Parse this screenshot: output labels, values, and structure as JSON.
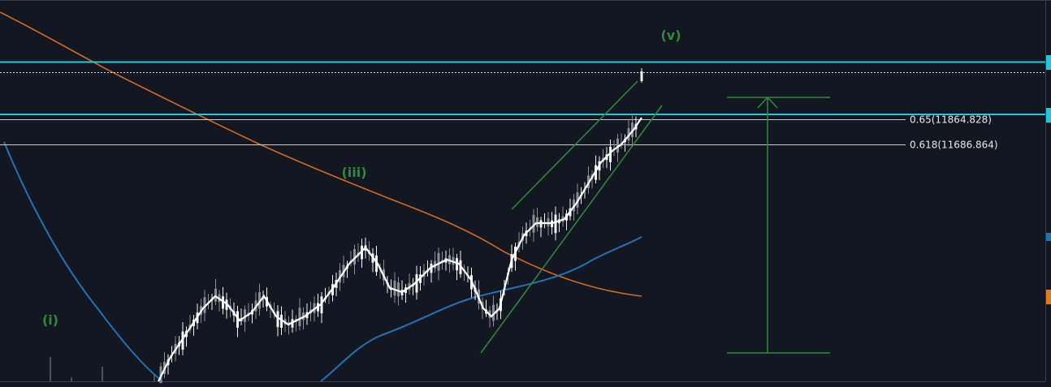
{
  "wave_labels": [
    "(v)",
    "(iii)",
    "(i)"
  ],
  "fib_levels": [
    "0.65(11864.828)",
    "0.618(11686.864)"
  ]
}
